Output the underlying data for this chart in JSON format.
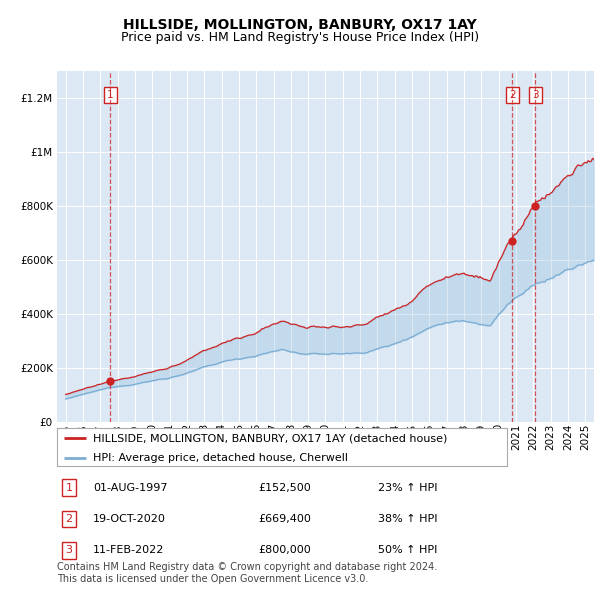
{
  "title": "HILLSIDE, MOLLINGTON, BANBURY, OX17 1AY",
  "subtitle": "Price paid vs. HM Land Registry's House Price Index (HPI)",
  "ylim": [
    0,
    1300000
  ],
  "yticks": [
    0,
    200000,
    400000,
    600000,
    800000,
    1000000,
    1200000
  ],
  "ytick_labels": [
    "£0",
    "£200K",
    "£400K",
    "£600K",
    "£800K",
    "£1M",
    "£1.2M"
  ],
  "x_start_year": 1995,
  "x_end_year": 2025,
  "hpi_color": "#7aadd4",
  "sale_color": "#cc2222",
  "bg_color": "#dce9f5",
  "grid_color": "#ffffff",
  "legend_label_sale": "HILLSIDE, MOLLINGTON, BANBURY, OX17 1AY (detached house)",
  "legend_label_hpi": "HPI: Average price, detached house, Cherwell",
  "sales": [
    {
      "date_num": 1997.583,
      "price": 152500,
      "label": "1"
    },
    {
      "date_num": 2020.792,
      "price": 669400,
      "label": "2"
    },
    {
      "date_num": 2022.117,
      "price": 800000,
      "label": "3"
    }
  ],
  "annotations": [
    {
      "num": "1",
      "date": "01-AUG-1997",
      "price": "£152,500",
      "pct": "23% ↑ HPI"
    },
    {
      "num": "2",
      "date": "19-OCT-2020",
      "price": "£669,400",
      "pct": "38% ↑ HPI"
    },
    {
      "num": "3",
      "date": "11-FEB-2022",
      "price": "£800,000",
      "pct": "50% ↑ HPI"
    }
  ],
  "footer": "Contains HM Land Registry data © Crown copyright and database right 2024.\nThis data is licensed under the Open Government Licence v3.0.",
  "title_fontsize": 10,
  "subtitle_fontsize": 9,
  "tick_fontsize": 7.5,
  "legend_fontsize": 8,
  "annotation_fontsize": 8,
  "footer_fontsize": 7
}
